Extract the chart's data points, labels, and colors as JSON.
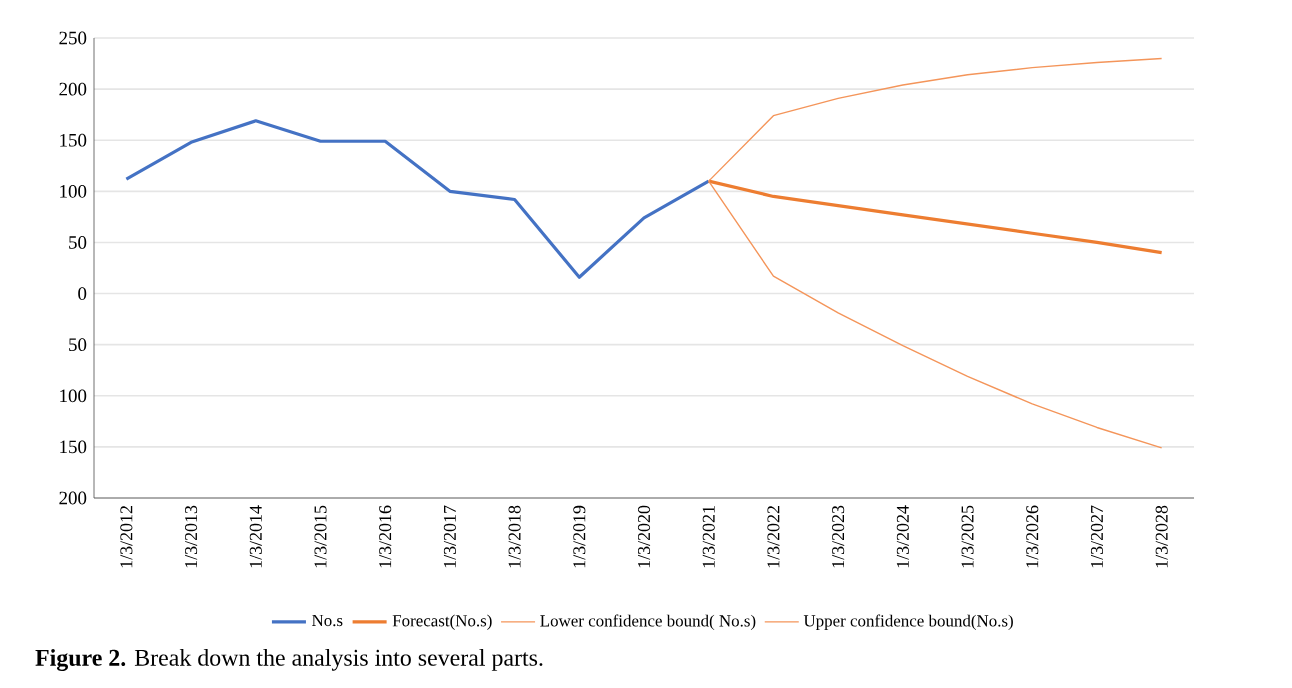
{
  "chart_data": {
    "type": "line",
    "categories": [
      "1/3/2012",
      "1/3/2013",
      "1/3/2014",
      "1/3/2015",
      "1/3/2016",
      "1/3/2017",
      "1/3/2018",
      "1/3/2019",
      "1/3/2020",
      "1/3/2021",
      "1/3/2022",
      "1/3/2023",
      "1/3/2024",
      "1/3/2025",
      "1/3/2026",
      "1/3/2027",
      "1/3/2028"
    ],
    "series": [
      {
        "name": "No.s",
        "color": "#4472c4",
        "values": [
          112,
          148,
          169,
          149,
          149,
          100,
          92,
          16,
          74,
          110,
          null,
          null,
          null,
          null,
          null,
          null,
          null
        ]
      },
      {
        "name": "Forecast(No.s)",
        "color": "#ed7d31",
        "values": [
          null,
          null,
          null,
          null,
          null,
          null,
          null,
          null,
          null,
          110,
          95,
          86,
          77,
          68,
          59,
          50,
          40
        ]
      },
      {
        "name": "Lower confidence bound( No.s)",
        "color": "#f4955a",
        "values": [
          null,
          null,
          null,
          null,
          null,
          null,
          null,
          null,
          null,
          110,
          17,
          -19,
          -51,
          -81,
          -108,
          -131,
          -151
        ]
      },
      {
        "name": "Upper confidence bound(No.s)",
        "color": "#f4955a",
        "values": [
          null,
          null,
          null,
          null,
          null,
          null,
          null,
          null,
          null,
          110,
          174,
          191,
          204,
          214,
          221,
          226,
          230
        ]
      }
    ],
    "ylim": [
      -200,
      250
    ],
    "yticks": [
      250,
      200,
      150,
      100,
      50,
      0,
      {
        "value": -50,
        "label": "50"
      },
      {
        "value": -100,
        "label": "100"
      },
      {
        "value": -150,
        "label": "150"
      },
      {
        "value": -200,
        "label": "200"
      }
    ],
    "grid": "y",
    "legend": "bottom",
    "annotations": [
      "**Figure 2.** Break down the analysis into several parts."
    ]
  }
}
